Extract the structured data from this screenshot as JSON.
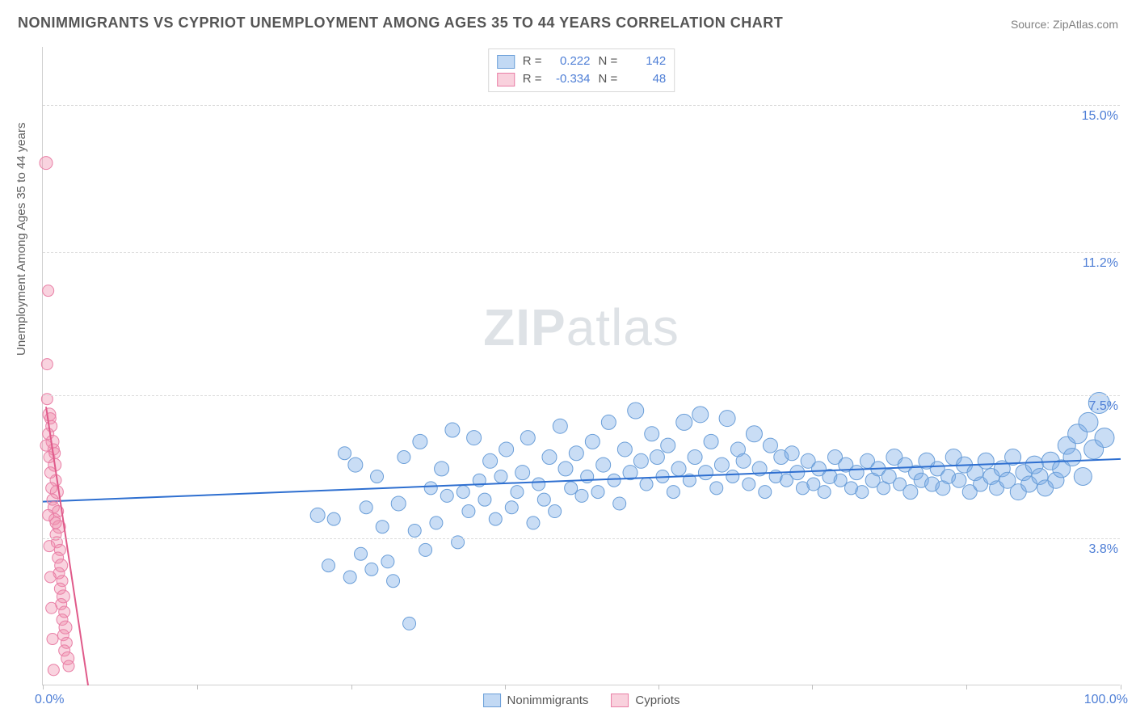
{
  "title": "NONIMMIGRANTS VS CYPRIOT UNEMPLOYMENT AMONG AGES 35 TO 44 YEARS CORRELATION CHART",
  "source": "Source: ZipAtlas.com",
  "ylabel": "Unemployment Among Ages 35 to 44 years",
  "watermark_a": "ZIP",
  "watermark_b": "atlas",
  "chart": {
    "type": "scatter",
    "background_color": "#ffffff",
    "grid_color": "#dcdcdc",
    "axis_color": "#d0d0d0",
    "label_color": "#4f7fd6",
    "xlim": [
      0,
      100
    ],
    "ylim": [
      0,
      16.5
    ],
    "y_ticks": [
      {
        "v": 3.8,
        "label": "3.8%"
      },
      {
        "v": 7.5,
        "label": "7.5%"
      },
      {
        "v": 11.2,
        "label": "11.2%"
      },
      {
        "v": 15.0,
        "label": "15.0%"
      }
    ],
    "x_ticks": [
      0,
      14.3,
      28.6,
      42.9,
      57.1,
      71.4,
      85.7,
      100
    ],
    "x_min_label": "0.0%",
    "x_max_label": "100.0%",
    "series": [
      {
        "name": "Nonimmigrants",
        "fill": "rgba(120,170,230,0.40)",
        "stroke": "#6a9ed8",
        "r_stat": "0.222",
        "n_stat": "142",
        "trend": {
          "x1": 0,
          "y1": 4.75,
          "x2": 100,
          "y2": 5.85,
          "color": "#2e6fd0",
          "width": 2
        },
        "points": [
          [
            25.5,
            4.4,
            9
          ],
          [
            26.5,
            3.1,
            8
          ],
          [
            27.0,
            4.3,
            8
          ],
          [
            28.0,
            6.0,
            8
          ],
          [
            28.5,
            2.8,
            8
          ],
          [
            29.0,
            5.7,
            9
          ],
          [
            29.5,
            3.4,
            8
          ],
          [
            30.0,
            4.6,
            8
          ],
          [
            30.5,
            3.0,
            8
          ],
          [
            31.0,
            5.4,
            8
          ],
          [
            31.5,
            4.1,
            8
          ],
          [
            32.0,
            3.2,
            8
          ],
          [
            32.5,
            2.7,
            8
          ],
          [
            33.0,
            4.7,
            9
          ],
          [
            33.5,
            5.9,
            8
          ],
          [
            34.0,
            1.6,
            8
          ],
          [
            34.5,
            4.0,
            8
          ],
          [
            35.0,
            6.3,
            9
          ],
          [
            35.5,
            3.5,
            8
          ],
          [
            36.0,
            5.1,
            8
          ],
          [
            36.5,
            4.2,
            8
          ],
          [
            37.0,
            5.6,
            9
          ],
          [
            37.5,
            4.9,
            8
          ],
          [
            38.0,
            6.6,
            9
          ],
          [
            38.5,
            3.7,
            8
          ],
          [
            39.0,
            5.0,
            8
          ],
          [
            39.5,
            4.5,
            8
          ],
          [
            40.0,
            6.4,
            9
          ],
          [
            40.5,
            5.3,
            8
          ],
          [
            41.0,
            4.8,
            8
          ],
          [
            41.5,
            5.8,
            9
          ],
          [
            42.0,
            4.3,
            8
          ],
          [
            42.5,
            5.4,
            8
          ],
          [
            43.0,
            6.1,
            9
          ],
          [
            43.5,
            4.6,
            8
          ],
          [
            44.0,
            5.0,
            8
          ],
          [
            44.5,
            5.5,
            9
          ],
          [
            45.0,
            6.4,
            9
          ],
          [
            45.5,
            4.2,
            8
          ],
          [
            46.0,
            5.2,
            8
          ],
          [
            46.5,
            4.8,
            8
          ],
          [
            47.0,
            5.9,
            9
          ],
          [
            47.5,
            4.5,
            8
          ],
          [
            48.0,
            6.7,
            9
          ],
          [
            48.5,
            5.6,
            9
          ],
          [
            49.0,
            5.1,
            8
          ],
          [
            49.5,
            6.0,
            9
          ],
          [
            50.0,
            4.9,
            8
          ],
          [
            50.5,
            5.4,
            8
          ],
          [
            51.0,
            6.3,
            9
          ],
          [
            51.5,
            5.0,
            8
          ],
          [
            52.0,
            5.7,
            9
          ],
          [
            52.5,
            6.8,
            9
          ],
          [
            53.0,
            5.3,
            8
          ],
          [
            53.5,
            4.7,
            8
          ],
          [
            54.0,
            6.1,
            9
          ],
          [
            54.5,
            5.5,
            9
          ],
          [
            55.0,
            7.1,
            10
          ],
          [
            55.5,
            5.8,
            9
          ],
          [
            56.0,
            5.2,
            8
          ],
          [
            56.5,
            6.5,
            9
          ],
          [
            57.0,
            5.9,
            9
          ],
          [
            57.5,
            5.4,
            8
          ],
          [
            58.0,
            6.2,
            9
          ],
          [
            58.5,
            5.0,
            8
          ],
          [
            59.0,
            5.6,
            9
          ],
          [
            59.5,
            6.8,
            10
          ],
          [
            60.0,
            5.3,
            8
          ],
          [
            60.5,
            5.9,
            9
          ],
          [
            61.0,
            7.0,
            10
          ],
          [
            61.5,
            5.5,
            9
          ],
          [
            62.0,
            6.3,
            9
          ],
          [
            62.5,
            5.1,
            8
          ],
          [
            63.0,
            5.7,
            9
          ],
          [
            63.5,
            6.9,
            10
          ],
          [
            64.0,
            5.4,
            8
          ],
          [
            64.5,
            6.1,
            9
          ],
          [
            65.0,
            5.8,
            9
          ],
          [
            65.5,
            5.2,
            8
          ],
          [
            66.0,
            6.5,
            10
          ],
          [
            66.5,
            5.6,
            9
          ],
          [
            67.0,
            5.0,
            8
          ],
          [
            67.5,
            6.2,
            9
          ],
          [
            68.0,
            5.4,
            8
          ],
          [
            68.5,
            5.9,
            9
          ],
          [
            69.0,
            5.3,
            8
          ],
          [
            69.5,
            6.0,
            9
          ],
          [
            70.0,
            5.5,
            9
          ],
          [
            70.5,
            5.1,
            8
          ],
          [
            71.0,
            5.8,
            9
          ],
          [
            71.5,
            5.2,
            8
          ],
          [
            72.0,
            5.6,
            9
          ],
          [
            72.5,
            5.0,
            8
          ],
          [
            73.0,
            5.4,
            9
          ],
          [
            73.5,
            5.9,
            9
          ],
          [
            74.0,
            5.3,
            8
          ],
          [
            74.5,
            5.7,
            9
          ],
          [
            75.0,
            5.1,
            8
          ],
          [
            75.5,
            5.5,
            9
          ],
          [
            76.0,
            5.0,
            8
          ],
          [
            76.5,
            5.8,
            9
          ],
          [
            77.0,
            5.3,
            9
          ],
          [
            77.5,
            5.6,
            9
          ],
          [
            78.0,
            5.1,
            8
          ],
          [
            78.5,
            5.4,
            9
          ],
          [
            79.0,
            5.9,
            10
          ],
          [
            79.5,
            5.2,
            8
          ],
          [
            80.0,
            5.7,
            9
          ],
          [
            80.5,
            5.0,
            9
          ],
          [
            81.0,
            5.5,
            9
          ],
          [
            81.5,
            5.3,
            9
          ],
          [
            82.0,
            5.8,
            10
          ],
          [
            82.5,
            5.2,
            9
          ],
          [
            83.0,
            5.6,
            9
          ],
          [
            83.5,
            5.1,
            9
          ],
          [
            84.0,
            5.4,
            9
          ],
          [
            84.5,
            5.9,
            10
          ],
          [
            85.0,
            5.3,
            9
          ],
          [
            85.5,
            5.7,
            10
          ],
          [
            86.0,
            5.0,
            9
          ],
          [
            86.5,
            5.5,
            10
          ],
          [
            87.0,
            5.2,
            9
          ],
          [
            87.5,
            5.8,
            10
          ],
          [
            88.0,
            5.4,
            10
          ],
          [
            88.5,
            5.1,
            9
          ],
          [
            89.0,
            5.6,
            10
          ],
          [
            89.5,
            5.3,
            10
          ],
          [
            90.0,
            5.9,
            10
          ],
          [
            90.5,
            5.0,
            10
          ],
          [
            91.0,
            5.5,
            10
          ],
          [
            91.5,
            5.2,
            10
          ],
          [
            92.0,
            5.7,
            11
          ],
          [
            92.5,
            5.4,
            10
          ],
          [
            93.0,
            5.1,
            10
          ],
          [
            93.5,
            5.8,
            11
          ],
          [
            94.0,
            5.3,
            10
          ],
          [
            94.5,
            5.6,
            11
          ],
          [
            95.0,
            6.2,
            11
          ],
          [
            95.5,
            5.9,
            11
          ],
          [
            96.0,
            6.5,
            12
          ],
          [
            96.5,
            5.4,
            11
          ],
          [
            97.0,
            6.8,
            12
          ],
          [
            97.5,
            6.1,
            12
          ],
          [
            98.0,
            7.3,
            13
          ],
          [
            98.5,
            6.4,
            12
          ]
        ]
      },
      {
        "name": "Cypriots",
        "fill": "rgba(240,140,170,0.38)",
        "stroke": "#e97fa6",
        "r_stat": "-0.334",
        "n_stat": "48",
        "trend": {
          "x1": 0.3,
          "y1": 7.2,
          "x2": 4.2,
          "y2": 0,
          "color": "#e05a8a",
          "width": 2
        },
        "points": [
          [
            0.3,
            13.5,
            8
          ],
          [
            0.5,
            10.2,
            7
          ],
          [
            0.4,
            8.3,
            7
          ],
          [
            0.6,
            7.0,
            8
          ],
          [
            0.7,
            6.9,
            7
          ],
          [
            0.8,
            6.7,
            7
          ],
          [
            0.5,
            6.5,
            7
          ],
          [
            0.9,
            6.3,
            8
          ],
          [
            1.0,
            6.1,
            7
          ],
          [
            0.6,
            5.9,
            7
          ],
          [
            1.1,
            5.7,
            8
          ],
          [
            0.7,
            5.5,
            7
          ],
          [
            1.2,
            5.3,
            7
          ],
          [
            0.8,
            5.1,
            7
          ],
          [
            1.3,
            5.0,
            8
          ],
          [
            0.9,
            4.8,
            7
          ],
          [
            1.0,
            4.6,
            7
          ],
          [
            1.4,
            4.5,
            7
          ],
          [
            1.1,
            4.3,
            7
          ],
          [
            1.5,
            4.1,
            8
          ],
          [
            1.2,
            3.9,
            7
          ],
          [
            1.3,
            3.7,
            7
          ],
          [
            1.6,
            3.5,
            7
          ],
          [
            1.4,
            3.3,
            7
          ],
          [
            1.7,
            3.1,
            8
          ],
          [
            1.5,
            2.9,
            7
          ],
          [
            1.8,
            2.7,
            7
          ],
          [
            1.6,
            2.5,
            7
          ],
          [
            1.9,
            2.3,
            8
          ],
          [
            1.7,
            2.1,
            7
          ],
          [
            2.0,
            1.9,
            7
          ],
          [
            1.8,
            1.7,
            7
          ],
          [
            2.1,
            1.5,
            8
          ],
          [
            1.9,
            1.3,
            7
          ],
          [
            2.2,
            1.1,
            7
          ],
          [
            2.0,
            0.9,
            7
          ],
          [
            2.3,
            0.7,
            8
          ],
          [
            2.4,
            0.5,
            7
          ],
          [
            0.4,
            7.4,
            7
          ],
          [
            0.3,
            6.2,
            7
          ],
          [
            0.5,
            4.4,
            7
          ],
          [
            0.6,
            3.6,
            7
          ],
          [
            0.7,
            2.8,
            7
          ],
          [
            0.8,
            2.0,
            7
          ],
          [
            0.9,
            1.2,
            7
          ],
          [
            1.0,
            0.4,
            7
          ],
          [
            1.1,
            6.0,
            7
          ],
          [
            1.2,
            4.2,
            7
          ]
        ]
      }
    ],
    "legend_bottom": [
      "Nonimmigrants",
      "Cypriots"
    ]
  }
}
